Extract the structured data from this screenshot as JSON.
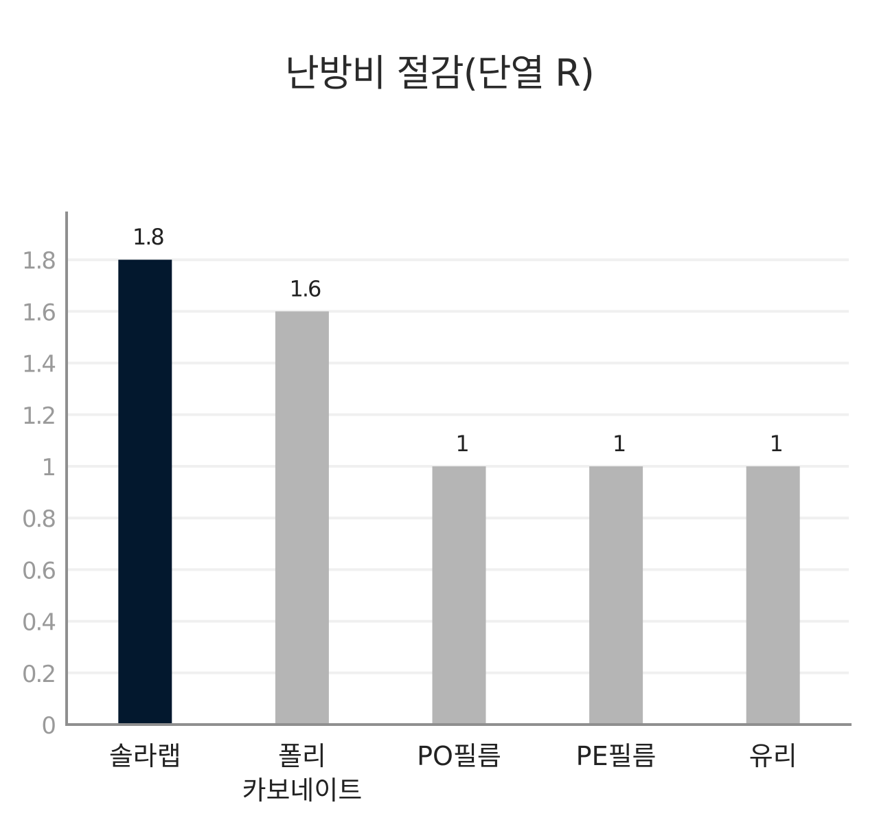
{
  "chart_data": {
    "type": "bar",
    "title": "난방비  절감(단열 R)",
    "categories": [
      "솔라랩",
      "폴리\n카보네이트",
      "PO필름",
      "PE필름",
      "유리"
    ],
    "values": [
      1.8,
      1.6,
      1,
      1,
      1
    ],
    "value_labels": [
      "1.8",
      "1.6",
      "1",
      "1",
      "1"
    ],
    "ytick_labels": [
      "0",
      "0.2",
      "0.4",
      "0.6",
      "0.8",
      "1",
      "1.2",
      "1.4",
      "1.6",
      "1.8"
    ],
    "ylim": [
      0,
      2
    ],
    "grid": true,
    "bar_colors": [
      "#03182e",
      "#b5b5b5",
      "#b5b5b5",
      "#b5b5b5",
      "#b5b5b5"
    ],
    "grid_color": "#f0f0f0",
    "axis_color": "#8f8f8f"
  }
}
